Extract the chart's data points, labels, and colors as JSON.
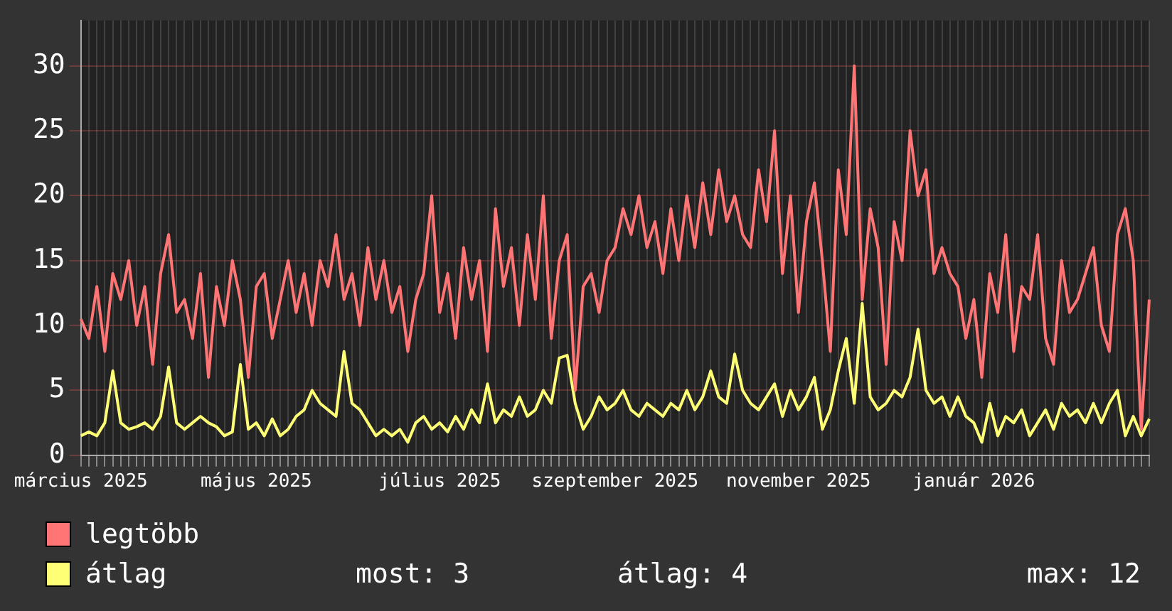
{
  "chart_data": {
    "type": "line",
    "categories": [
      "március 2025",
      null,
      null,
      null,
      null,
      null,
      null,
      null,
      null,
      null,
      null,
      null,
      null,
      null,
      null,
      null,
      null,
      null,
      null,
      null,
      null,
      null,
      "május 2025",
      null,
      null,
      null,
      null,
      null,
      null,
      null,
      null,
      null,
      null,
      null,
      null,
      null,
      null,
      null,
      null,
      null,
      null,
      null,
      null,
      null,
      null,
      "július 2025",
      null,
      null,
      null,
      null,
      null,
      null,
      null,
      null,
      null,
      null,
      null,
      null,
      null,
      null,
      null,
      null,
      null,
      null,
      null,
      null,
      null,
      "szeptember 2025",
      null,
      null,
      null,
      null,
      null,
      null,
      null,
      null,
      null,
      null,
      null,
      null,
      null,
      null,
      null,
      null,
      null,
      null,
      null,
      null,
      null,
      null,
      "november 2025",
      null,
      null,
      null,
      null,
      null,
      null,
      null,
      null,
      null,
      null,
      null,
      null,
      null,
      null,
      null,
      null,
      null,
      null,
      null,
      null,
      null,
      "január 2026",
      null,
      null,
      null,
      null,
      null,
      null,
      null,
      null,
      null,
      null,
      null,
      null,
      null,
      null,
      null,
      null,
      null,
      null,
      null,
      null,
      null,
      null
    ],
    "series": [
      {
        "name": "legtöbb",
        "color": "#ff7575",
        "values": [
          10.5,
          9,
          13,
          8,
          14,
          12,
          15,
          10,
          13,
          7,
          14,
          17,
          11,
          12,
          9,
          14,
          6,
          13,
          10,
          15,
          12,
          6,
          13,
          14,
          9,
          12,
          15,
          11,
          14,
          10,
          15,
          13,
          17,
          12,
          14,
          10,
          16,
          12,
          15,
          11,
          13,
          8,
          12,
          14,
          20,
          11,
          14,
          9,
          16,
          12,
          15,
          8,
          19,
          13,
          16,
          10,
          17,
          12,
          20,
          9,
          15,
          17,
          5,
          13,
          14,
          11,
          15,
          16,
          19,
          17,
          20,
          16,
          18,
          14,
          19,
          15,
          20,
          16,
          21,
          17,
          22,
          18,
          20,
          17,
          16,
          22,
          18,
          25,
          14,
          20,
          11,
          18,
          21,
          15,
          8,
          22,
          17,
          30,
          12,
          19,
          16,
          7,
          18,
          15,
          25,
          20,
          22,
          14,
          16,
          14,
          13,
          9,
          12,
          6,
          14,
          11,
          17,
          8,
          13,
          12,
          17,
          9,
          7,
          15,
          11,
          12,
          14,
          16,
          10,
          8,
          17,
          19,
          15,
          2,
          12
        ]
      },
      {
        "name": "átlag",
        "color": "#ffff75",
        "values": [
          1.5,
          1.8,
          1.5,
          2.5,
          6.5,
          2.5,
          2,
          2.2,
          2.5,
          2,
          3,
          6.8,
          2.5,
          2,
          2.5,
          3,
          2.5,
          2.2,
          1.5,
          1.8,
          7,
          2,
          2.5,
          1.5,
          2.8,
          1.5,
          2,
          3,
          3.5,
          5,
          4,
          3.5,
          3,
          8,
          4,
          3.5,
          2.5,
          1.5,
          2,
          1.5,
          2,
          1,
          2.5,
          3,
          2,
          2.5,
          1.8,
          3,
          2,
          3.5,
          2.5,
          5.5,
          2.5,
          3.5,
          3,
          4.5,
          3,
          3.5,
          5,
          4,
          7.5,
          7.7,
          4,
          2,
          3,
          4.5,
          3.5,
          4,
          5,
          3.5,
          3,
          4,
          3.5,
          3,
          4,
          3.5,
          5,
          3.5,
          4.5,
          6.5,
          4.5,
          4,
          7.8,
          5,
          4,
          3.5,
          4.5,
          5.5,
          3,
          5,
          3.5,
          4.5,
          6,
          2,
          3.5,
          6.5,
          9,
          4,
          11.7,
          4.5,
          3.5,
          4,
          5,
          4.5,
          6,
          9.7,
          5,
          4,
          4.5,
          3,
          4.5,
          3,
          2.5,
          1,
          4,
          1.5,
          3,
          2.5,
          3.5,
          1.5,
          2.5,
          3.5,
          2,
          4,
          3,
          3.5,
          2.5,
          4,
          2.5,
          4,
          5,
          1.5,
          3,
          1.5,
          2.8
        ]
      }
    ],
    "ylim": [
      0,
      33.5
    ],
    "yticks": [
      0,
      5,
      10,
      15,
      20,
      25,
      30
    ],
    "grid": true,
    "legend": "bottom left",
    "marker": "none",
    "line_style": "solid",
    "annotations": [
      "most: 3",
      "átlag: 4",
      "max: 12"
    ]
  }
}
